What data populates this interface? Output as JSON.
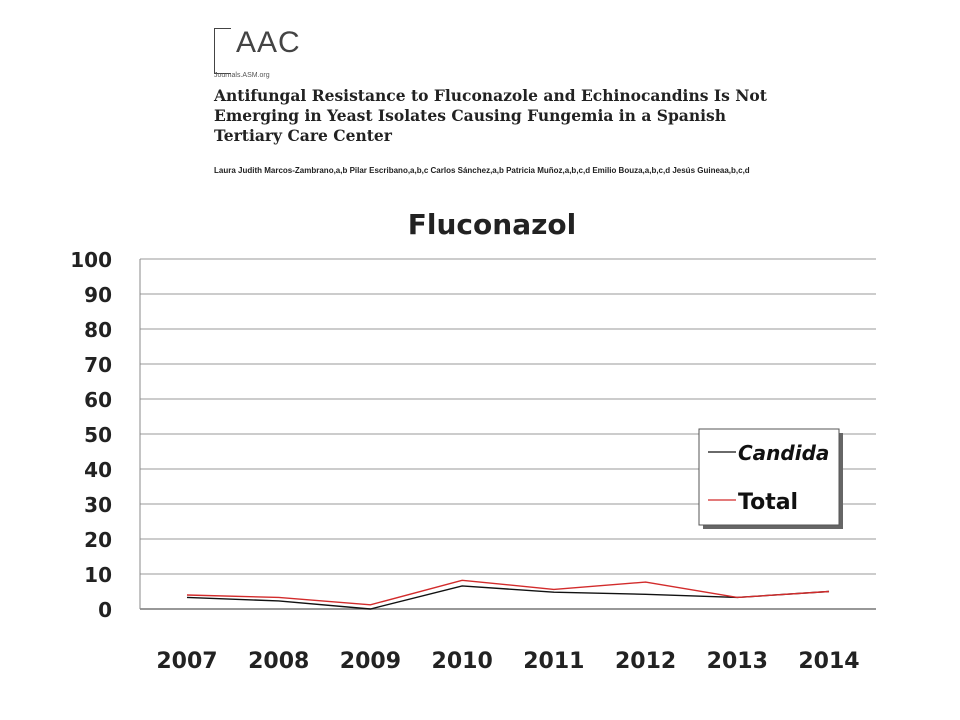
{
  "header": {
    "logo_text": "AAC",
    "logo_sub": "Journals.ASM.org",
    "paper_title": "Antifungal Resistance to Fluconazole and Echinocandins Is Not Emerging in Yeast Isolates Causing Fungemia in a Spanish Tertiary Care Center",
    "authors": "Laura Judith Marcos-Zambrano,a,b Pilar Escribano,a,b,c Carlos Sánchez,a,b Patricia Muñoz,a,b,c,d Emilio Bouza,a,b,c,d Jesús Guineaa,b,c,d"
  },
  "colors": {
    "candida": "#111111",
    "total": "#d22b2b",
    "grid": "#999999"
  },
  "chart_data": {
    "type": "line",
    "title": "Fluconazol",
    "xlabel": "",
    "ylabel": "",
    "x": [
      "2007",
      "2008",
      "2009",
      "2010",
      "2011",
      "2012",
      "2013",
      "2014"
    ],
    "yticks": [
      "0",
      "10",
      "20",
      "30",
      "40",
      "50",
      "60",
      "70",
      "80",
      "90",
      "100"
    ],
    "ylim": [
      0,
      100
    ],
    "grid": true,
    "legend_position": "right",
    "series": [
      {
        "name": "Candida",
        "values": [
          3.3,
          2.3,
          0,
          6.6,
          4.8,
          4.2,
          3.3,
          5.0
        ]
      },
      {
        "name": "Total",
        "values": [
          4.0,
          3.3,
          1.2,
          8.2,
          5.6,
          7.7,
          3.3,
          5.0
        ]
      }
    ]
  }
}
